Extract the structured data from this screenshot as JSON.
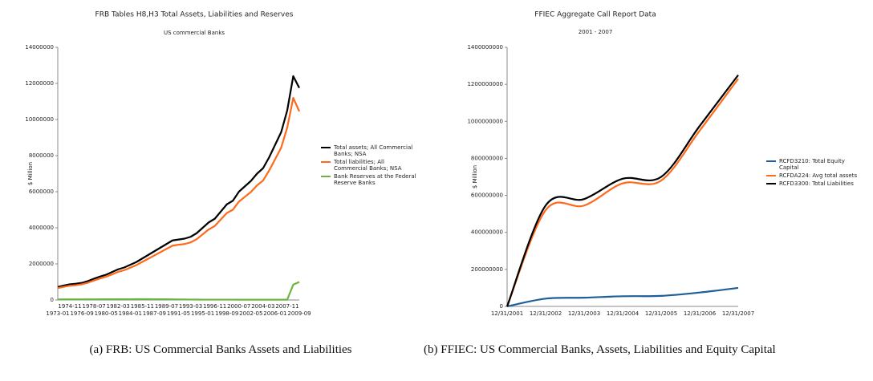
{
  "chart_data": [
    {
      "type": "line",
      "title": "FRB Tables H8,H3 Total Assets, Liabilities and Reserves",
      "subtitle": "US commercial Banks",
      "y_label": "$ Million",
      "categories": [
        "1973-01",
        null,
        "1974-11",
        null,
        "1976-09",
        null,
        "1978-07",
        null,
        "1980-05",
        null,
        "1982-03",
        null,
        "1984-01",
        null,
        "1985-11",
        null,
        "1987-09",
        null,
        "1989-07",
        null,
        "1991-05",
        null,
        "1993-03",
        null,
        "1995-01",
        null,
        "1996-11",
        null,
        "1998-09",
        null,
        "2000-07",
        null,
        "2002-05",
        null,
        "2004-03",
        null,
        "2006-01",
        null,
        "2007-11",
        null,
        "2009-09"
      ],
      "ylim": [
        0,
        14000000
      ],
      "yticks": [
        0,
        2000000,
        4000000,
        6000000,
        8000000,
        10000000,
        12000000,
        14000000
      ],
      "series": [
        {
          "name": "Total assets; All Commercial Banks; NSA",
          "color": "#000000",
          "values": [
            720000,
            800000,
            870000,
            900000,
            950000,
            1050000,
            1180000,
            1300000,
            1400000,
            1550000,
            1700000,
            1800000,
            1950000,
            2100000,
            2300000,
            2500000,
            2700000,
            2900000,
            3100000,
            3300000,
            3350000,
            3400000,
            3500000,
            3700000,
            4000000,
            4300000,
            4500000,
            4900000,
            5300000,
            5500000,
            6000000,
            6300000,
            6600000,
            7000000,
            7300000,
            7900000,
            8600000,
            9300000,
            10500000,
            12400000,
            11750000
          ]
        },
        {
          "name": "Total liabilities; All Commercial Banks; NSA",
          "color": "#ff6a1a",
          "values": [
            660000,
            730000,
            790000,
            820000,
            870000,
            960000,
            1080000,
            1190000,
            1290000,
            1420000,
            1560000,
            1650000,
            1790000,
            1930000,
            2110000,
            2290000,
            2470000,
            2650000,
            2830000,
            3010000,
            3060000,
            3100000,
            3190000,
            3370000,
            3640000,
            3910000,
            4100000,
            4460000,
            4820000,
            5000000,
            5450000,
            5720000,
            5990000,
            6350000,
            6620000,
            7170000,
            7800000,
            8440000,
            9550000,
            11200000,
            10450000
          ]
        },
        {
          "name": "Bank Reserves at the Federal Reserve Banks",
          "color": "#6db33f",
          "values": [
            30000,
            32000,
            34000,
            35000,
            35000,
            36000,
            37000,
            38000,
            40000,
            40000,
            40000,
            41000,
            42000,
            45000,
            45000,
            45000,
            40000,
            38000,
            38000,
            35000,
            30000,
            28000,
            25000,
            22000,
            20000,
            20000,
            20000,
            20000,
            20000,
            20000,
            18000,
            18000,
            17000,
            17000,
            17000,
            17000,
            17000,
            17000,
            17000,
            850000,
            1000000
          ]
        }
      ]
    },
    {
      "type": "line",
      "title": "FFIEC Aggregate Call Report Data",
      "subtitle": "2001 - 2007",
      "y_label": "$ Million",
      "categories": [
        "12/31/2001",
        "12/31/2002",
        "12/31/2003",
        "12/31/2004",
        "12/31/2005",
        "12/31/2006",
        "12/31/2007"
      ],
      "ylim": [
        0,
        1400000000
      ],
      "yticks": [
        0,
        200000000,
        400000000,
        600000000,
        800000000,
        1000000000,
        1200000000,
        1400000000
      ],
      "series": [
        {
          "name": "RCFD3210: Total Equity Capital",
          "color": "#1f5f99",
          "values": [
            0,
            42000000,
            47000000,
            55000000,
            57000000,
            75000000,
            100000000
          ]
        },
        {
          "name": "RCFDA224: Avg total assets",
          "color": "#ff6a1a",
          "values": [
            0,
            520000000,
            545000000,
            665000000,
            680000000,
            950000000,
            1230000000
          ]
        },
        {
          "name": "RCFD3300: Total Liabilities",
          "color": "#000000",
          "values": [
            0,
            545000000,
            580000000,
            690000000,
            700000000,
            975000000,
            1250000000
          ]
        }
      ]
    }
  ],
  "captions": [
    "(a) FRB: US Commercial Banks Assets and Liabilities",
    "(b) FFIEC: US Commercial Banks, Assets, Liabilities and Equity Capital"
  ]
}
